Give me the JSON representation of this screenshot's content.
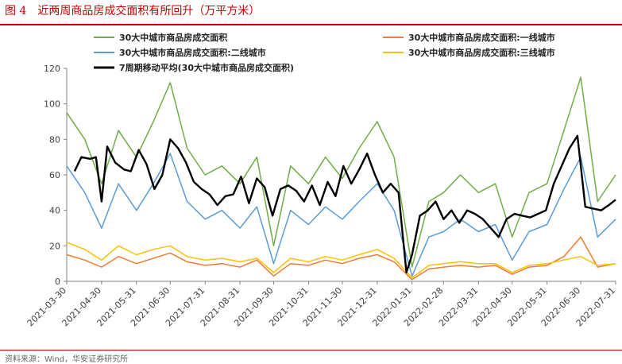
{
  "figure": {
    "title": "图 4　近两周商品房成交面积有所回升（万平方米）",
    "source": "资料来源：Wind，华安证券研究所"
  },
  "colors": {
    "total": "#70ad47",
    "tier1": "#ed7d31",
    "tier2": "#5b9bd5",
    "tier3": "#ffc000",
    "ma7": "#000000",
    "accent": "#c00000"
  },
  "chart_data": {
    "type": "line",
    "title": "",
    "xlabel": "",
    "ylabel": "",
    "ylim": [
      0,
      120
    ],
    "yticks": [
      0,
      20,
      40,
      60,
      80,
      100,
      120
    ],
    "x_start": "2021-03-30",
    "x_end": "2022-07-31",
    "xtick_labels": [
      "2021-03-30",
      "2021-04-30",
      "2021-05-31",
      "2021-06-30",
      "2021-07-31",
      "2021-08-31",
      "2021-09-30",
      "2021-10-31",
      "2021-11-30",
      "2021-12-31",
      "2022-01-31",
      "2022-02-28",
      "2022-03-31",
      "2022-04-30",
      "2022-05-31",
      "2022-06-30",
      "2022-07-31"
    ],
    "grid": false,
    "legend_position": "top",
    "series": [
      {
        "name": "30大中城市商品房成交面积",
        "color_key": "total",
        "x": [
          "2021-03-30",
          "2021-04-15",
          "2021-04-30",
          "2021-05-15",
          "2021-05-31",
          "2021-06-15",
          "2021-06-30",
          "2021-07-15",
          "2021-07-31",
          "2021-08-15",
          "2021-08-31",
          "2021-09-15",
          "2021-09-30",
          "2021-10-15",
          "2021-10-31",
          "2021-11-15",
          "2021-11-30",
          "2021-12-15",
          "2021-12-31",
          "2022-01-15",
          "2022-01-31",
          "2022-02-15",
          "2022-02-28",
          "2022-03-15",
          "2022-03-31",
          "2022-04-15",
          "2022-04-30",
          "2022-05-15",
          "2022-05-31",
          "2022-06-15",
          "2022-06-30",
          "2022-07-15",
          "2022-07-31"
        ],
        "values": [
          95,
          80,
          55,
          85,
          70,
          90,
          112,
          75,
          60,
          65,
          55,
          70,
          20,
          65,
          55,
          70,
          58,
          75,
          90,
          70,
          8,
          45,
          50,
          60,
          50,
          55,
          25,
          50,
          55,
          85,
          115,
          45,
          60
        ]
      },
      {
        "name": "30大中城市商品房成交面积:一线城市",
        "color_key": "tier1",
        "x": [
          "2021-03-30",
          "2021-04-15",
          "2021-04-30",
          "2021-05-15",
          "2021-05-31",
          "2021-06-15",
          "2021-06-30",
          "2021-07-15",
          "2021-07-31",
          "2021-08-15",
          "2021-08-31",
          "2021-09-15",
          "2021-09-30",
          "2021-10-15",
          "2021-10-31",
          "2021-11-15",
          "2021-11-30",
          "2021-12-15",
          "2021-12-31",
          "2022-01-15",
          "2022-01-31",
          "2022-02-15",
          "2022-02-28",
          "2022-03-15",
          "2022-03-31",
          "2022-04-15",
          "2022-04-30",
          "2022-05-15",
          "2022-05-31",
          "2022-06-15",
          "2022-06-30",
          "2022-07-15",
          "2022-07-31"
        ],
        "values": [
          15,
          12,
          8,
          14,
          10,
          13,
          16,
          11,
          9,
          10,
          8,
          12,
          3,
          10,
          9,
          12,
          10,
          13,
          15,
          11,
          1,
          7,
          8,
          9,
          8,
          9,
          4,
          8,
          9,
          14,
          25,
          8,
          10
        ]
      },
      {
        "name": "30大中城市商品房成交面积:二线城市",
        "color_key": "tier2",
        "x": [
          "2021-03-30",
          "2021-04-15",
          "2021-04-30",
          "2021-05-15",
          "2021-05-31",
          "2021-06-15",
          "2021-06-30",
          "2021-07-15",
          "2021-07-31",
          "2021-08-15",
          "2021-08-31",
          "2021-09-15",
          "2021-09-30",
          "2021-10-15",
          "2021-10-31",
          "2021-11-15",
          "2021-11-30",
          "2021-12-15",
          "2021-12-31",
          "2022-01-15",
          "2022-01-31",
          "2022-02-15",
          "2022-02-28",
          "2022-03-15",
          "2022-03-31",
          "2022-04-15",
          "2022-04-30",
          "2022-05-15",
          "2022-05-31",
          "2022-06-15",
          "2022-06-30",
          "2022-07-15",
          "2022-07-31"
        ],
        "values": [
          65,
          50,
          30,
          55,
          40,
          55,
          72,
          45,
          35,
          40,
          30,
          42,
          10,
          40,
          32,
          42,
          35,
          45,
          55,
          40,
          3,
          25,
          28,
          35,
          28,
          32,
          12,
          28,
          32,
          52,
          70,
          25,
          35
        ]
      },
      {
        "name": "30大中城市商品房成交面积:三线城市",
        "color_key": "tier3",
        "x": [
          "2021-03-30",
          "2021-04-15",
          "2021-04-30",
          "2021-05-15",
          "2021-05-31",
          "2021-06-15",
          "2021-06-30",
          "2021-07-15",
          "2021-07-31",
          "2021-08-15",
          "2021-08-31",
          "2021-09-15",
          "2021-09-30",
          "2021-10-15",
          "2021-10-31",
          "2021-11-15",
          "2021-11-30",
          "2021-12-15",
          "2021-12-31",
          "2022-01-15",
          "2022-01-31",
          "2022-02-15",
          "2022-02-28",
          "2022-03-15",
          "2022-03-31",
          "2022-04-15",
          "2022-04-30",
          "2022-05-15",
          "2022-05-31",
          "2022-06-15",
          "2022-06-30",
          "2022-07-15",
          "2022-07-31"
        ],
        "values": [
          22,
          18,
          12,
          20,
          15,
          18,
          20,
          14,
          12,
          13,
          11,
          13,
          5,
          13,
          11,
          14,
          12,
          15,
          18,
          13,
          2,
          9,
          10,
          11,
          10,
          10,
          5,
          9,
          10,
          12,
          14,
          9,
          10
        ]
      },
      {
        "name": "7周期移动平均(30大中城市商品房成交面积)",
        "color_key": "ma7",
        "x": [
          "2021-04-06",
          "2021-04-12",
          "2021-04-20",
          "2021-04-25",
          "2021-04-30",
          "2021-05-05",
          "2021-05-12",
          "2021-05-20",
          "2021-05-26",
          "2021-06-02",
          "2021-06-09",
          "2021-06-16",
          "2021-06-23",
          "2021-06-30",
          "2021-07-07",
          "2021-07-14",
          "2021-07-21",
          "2021-07-28",
          "2021-08-04",
          "2021-08-11",
          "2021-08-18",
          "2021-08-25",
          "2021-09-01",
          "2021-09-08",
          "2021-09-15",
          "2021-09-22",
          "2021-09-29",
          "2021-10-06",
          "2021-10-13",
          "2021-10-20",
          "2021-10-27",
          "2021-11-03",
          "2021-11-10",
          "2021-11-17",
          "2021-11-24",
          "2021-12-01",
          "2021-12-08",
          "2021-12-15",
          "2021-12-22",
          "2021-12-29",
          "2022-01-05",
          "2022-01-12",
          "2022-01-19",
          "2022-01-26",
          "2022-01-31",
          "2022-02-07",
          "2022-02-14",
          "2022-02-21",
          "2022-02-28",
          "2022-03-07",
          "2022-03-14",
          "2022-03-21",
          "2022-03-28",
          "2022-04-04",
          "2022-04-11",
          "2022-04-18",
          "2022-04-25",
          "2022-05-02",
          "2022-05-09",
          "2022-05-16",
          "2022-05-23",
          "2022-05-30",
          "2022-06-06",
          "2022-06-13",
          "2022-06-20",
          "2022-06-27",
          "2022-07-04",
          "2022-07-11",
          "2022-07-18",
          "2022-07-25",
          "2022-07-31"
        ],
        "values": [
          62,
          70,
          69,
          70,
          45,
          76,
          67,
          63,
          62,
          74,
          66,
          52,
          60,
          80,
          75,
          67,
          56,
          52,
          49,
          43,
          48,
          49,
          59,
          44,
          58,
          53,
          37,
          52,
          54,
          51,
          45,
          54,
          43,
          56,
          48,
          65,
          55,
          63,
          72,
          60,
          50,
          55,
          50,
          5,
          15,
          37,
          40,
          45,
          35,
          40,
          33,
          40,
          38,
          35,
          30,
          25,
          35,
          38,
          37,
          36,
          38,
          40,
          55,
          65,
          75,
          82,
          42,
          41,
          40,
          43,
          46
        ]
      }
    ]
  }
}
